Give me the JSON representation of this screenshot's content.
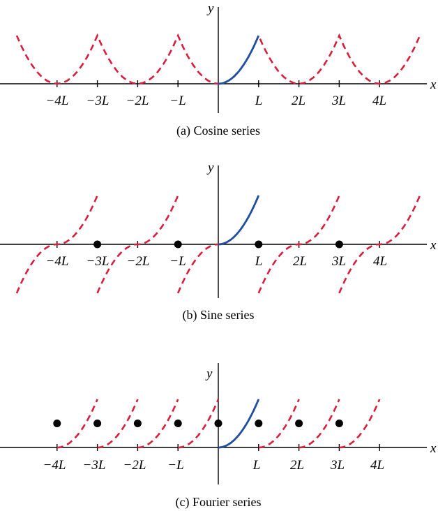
{
  "colors": {
    "original_function": "#1f4fa0",
    "periodic_extension": "#d81e3c",
    "axis": "#000000",
    "discontinuity_point": "#000000"
  },
  "tick_labels": [
    "−4L",
    "−3L",
    "−2L",
    "−L",
    "L",
    "2L",
    "3L",
    "4L"
  ],
  "tick_positions_L": [
    -4,
    -3,
    -2,
    -1,
    1,
    2,
    3,
    4
  ],
  "axis_labels": {
    "x": "x",
    "y": "y"
  },
  "panels": [
    {
      "key": "cosine",
      "caption": "(a) Cosine series",
      "extension": "even",
      "period_L": 2,
      "x_range_L": [
        -5,
        5
      ],
      "function": "f(x) = (x/L)^2 on [0, L]",
      "y_range": [
        0,
        1
      ],
      "dots": []
    },
    {
      "key": "sine",
      "caption": "(b) Sine series",
      "extension": "odd",
      "period_L": 2,
      "x_range_L": [
        -5,
        5
      ],
      "function": "f(x) = (x/L)^2 on [0, L]",
      "y_range": [
        -1,
        1
      ],
      "dots": [
        {
          "x_L": -3,
          "y": 0
        },
        {
          "x_L": -1,
          "y": 0
        },
        {
          "x_L": 1,
          "y": 0
        },
        {
          "x_L": 3,
          "y": 0
        }
      ]
    },
    {
      "key": "fourier",
      "caption": "(c) Fourier series",
      "extension": "periodic",
      "period_L": 1,
      "x_range_L": [
        -4,
        4
      ],
      "function": "f(x) = (x/L)^2 on [0, L]",
      "y_range": [
        0,
        1
      ],
      "dots": [
        {
          "x_L": -4,
          "y": 0.5
        },
        {
          "x_L": -3,
          "y": 0.5
        },
        {
          "x_L": -2,
          "y": 0.5
        },
        {
          "x_L": -1,
          "y": 0.5
        },
        {
          "x_L": 0,
          "y": 0.5
        },
        {
          "x_L": 1,
          "y": 0.5
        },
        {
          "x_L": 2,
          "y": 0.5
        },
        {
          "x_L": 3,
          "y": 0.5
        }
      ]
    }
  ]
}
